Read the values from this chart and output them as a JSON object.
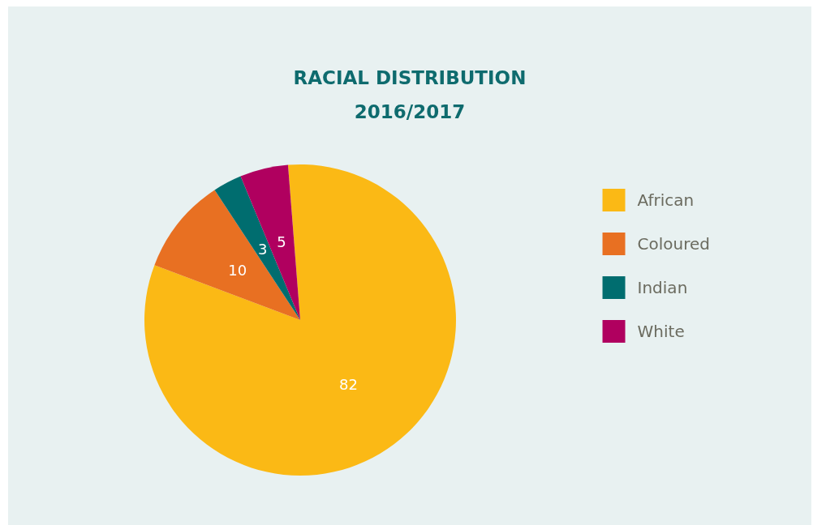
{
  "chart_data": {
    "type": "pie",
    "title": "RACIAL DISTRIBUTION\n2016/2017",
    "categories": [
      "African",
      "Coloured",
      "Indian",
      "White"
    ],
    "values": [
      82,
      10,
      3,
      5
    ],
    "colors": [
      "#fbb915",
      "#e87022",
      "#006d6f",
      "#b0005f"
    ],
    "data_labels": true,
    "legend": "right"
  }
}
